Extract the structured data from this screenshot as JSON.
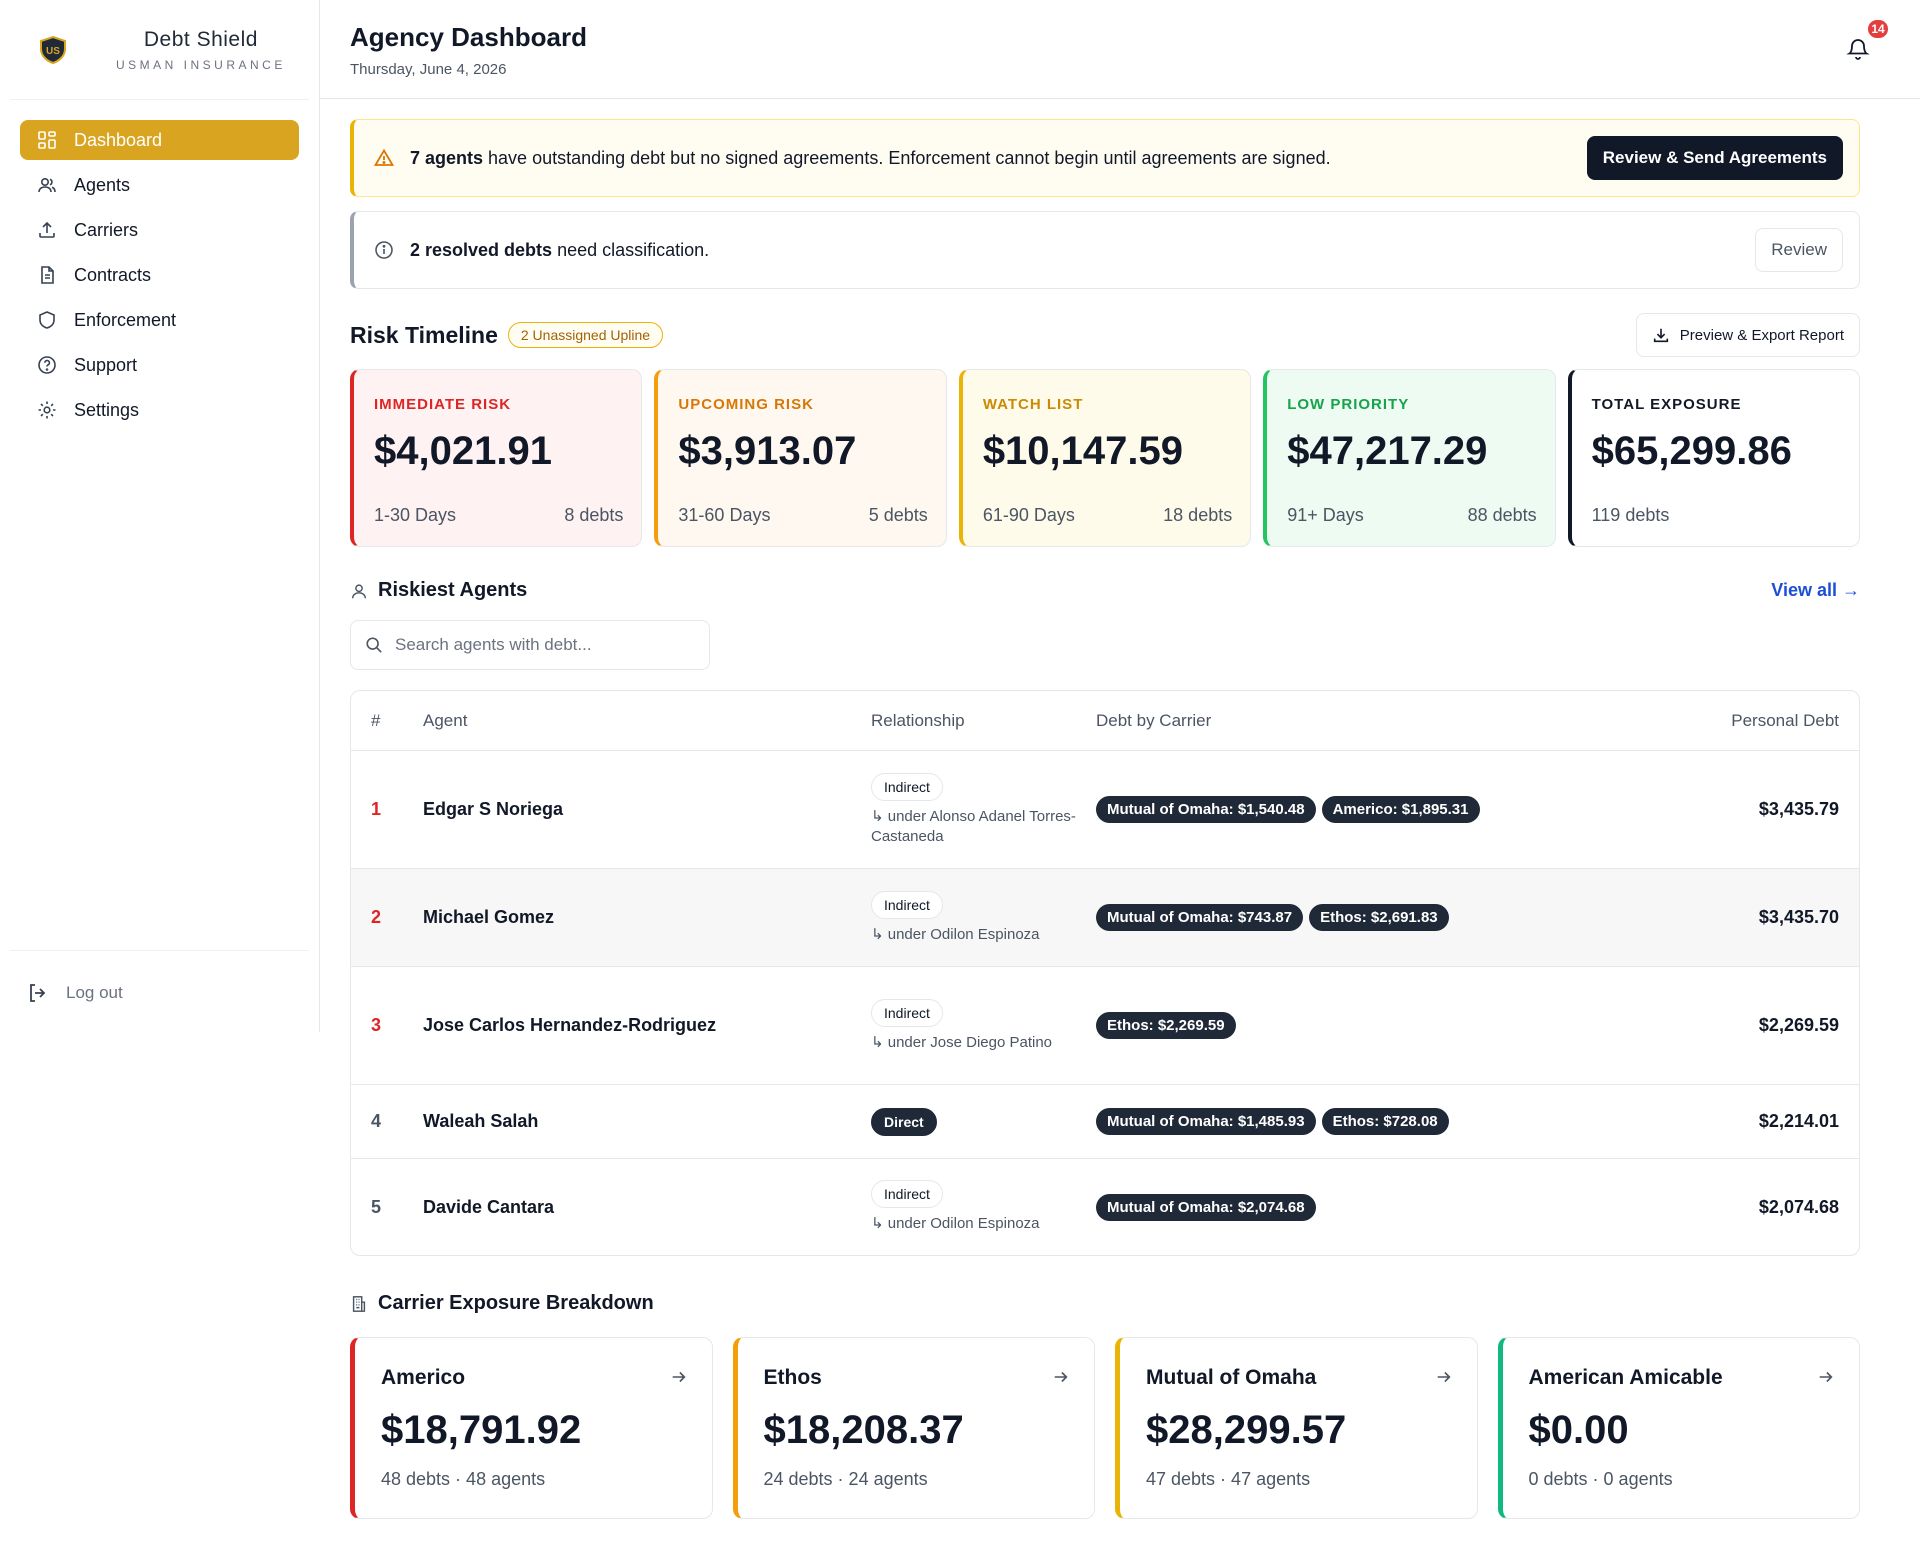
{
  "brand": {
    "name": "Debt Shield",
    "sub": "USMAN INSURANCE"
  },
  "nav": [
    {
      "label": "Dashboard",
      "icon": "grid-icon",
      "active": true
    },
    {
      "label": "Agents",
      "icon": "users-icon"
    },
    {
      "label": "Carriers",
      "icon": "upload-icon"
    },
    {
      "label": "Contracts",
      "icon": "document-icon"
    },
    {
      "label": "Enforcement",
      "icon": "shield-icon"
    },
    {
      "label": "Support",
      "icon": "help-icon"
    },
    {
      "label": "Settings",
      "icon": "gear-icon"
    }
  ],
  "logout": "Log out",
  "header": {
    "title": "Agency Dashboard",
    "date": "Thursday, June 4, 2026",
    "notifications": "14"
  },
  "alerts": {
    "warn": {
      "count": "7 agents",
      "text": " have outstanding debt but no signed agreements. Enforcement cannot begin until agreements are signed.",
      "button": "Review & Send Agreements"
    },
    "info": {
      "count": "2 resolved debts",
      "text": " need classification.",
      "button": "Review"
    }
  },
  "risk": {
    "title": "Risk Timeline",
    "badge": "2 Unassigned Upline",
    "export": "Preview & Export Report",
    "cards": [
      {
        "label": "IMMEDIATE RISK",
        "value": "$4,021.91",
        "range": "1-30 Days",
        "debts": "8 debts",
        "color": "#dc2626",
        "bg": "#fef2f2"
      },
      {
        "label": "UPCOMING RISK",
        "value": "$3,913.07",
        "range": "31-60 Days",
        "debts": "5 debts",
        "color": "#d97706",
        "bg": "#fff8f1"
      },
      {
        "label": "WATCH LIST",
        "value": "$10,147.59",
        "range": "61-90 Days",
        "debts": "18 debts",
        "color": "#ca8a04",
        "bg": "#fffbeb"
      },
      {
        "label": "LOW PRIORITY",
        "value": "$47,217.29",
        "range": "91+ Days",
        "debts": "88 debts",
        "color": "#16a34a",
        "bg": "#edfbf2"
      },
      {
        "label": "TOTAL EXPOSURE",
        "value": "$65,299.86",
        "range": "119 debts",
        "debts": "",
        "color": "#111827",
        "bg": "#ffffff"
      }
    ]
  },
  "riskiest": {
    "title": "Riskiest Agents",
    "view_all": "View all →",
    "search_placeholder": "Search agents with debt...",
    "columns": {
      "num": "#",
      "agent": "Agent",
      "relationship": "Relationship",
      "debt": "Debt by Carrier",
      "personal": "Personal Debt"
    },
    "rows": [
      {
        "num": "1",
        "name": "Edgar S Noriega",
        "rel": "Indirect",
        "under": "↳ under Alonso Adanel Torres-Castaneda",
        "chips": [
          "Mutual of Omaha: $1,540.48",
          "Americo: $1,895.31"
        ],
        "debt": "$3,435.79"
      },
      {
        "num": "2",
        "name": "Michael Gomez",
        "rel": "Indirect",
        "under": "↳ under Odilon Espinoza",
        "chips": [
          "Mutual of Omaha: $743.87",
          "Ethos: $2,691.83"
        ],
        "debt": "$3,435.70"
      },
      {
        "num": "3",
        "name": "Jose Carlos Hernandez-Rodriguez",
        "rel": "Indirect",
        "under": "↳ under Jose Diego Patino",
        "chips": [
          "Ethos: $2,269.59"
        ],
        "debt": "$2,269.59"
      },
      {
        "num": "4",
        "name": "Waleah Salah",
        "rel": "Direct",
        "under": "",
        "chips": [
          "Mutual of Omaha: $1,485.93",
          "Ethos: $728.08"
        ],
        "debt": "$2,214.01"
      },
      {
        "num": "5",
        "name": "Davide Cantara",
        "rel": "Indirect",
        "under": "↳ under Odilon Espinoza",
        "chips": [
          "Mutual of Omaha: $2,074.68"
        ],
        "debt": "$2,074.68"
      }
    ]
  },
  "carriers": {
    "title": "Carrier Exposure Breakdown",
    "cards": [
      {
        "name": "Americo",
        "value": "$18,791.92",
        "foot": "48 debts · 48 agents",
        "color": "#dc2626"
      },
      {
        "name": "Ethos",
        "value": "$18,208.37",
        "foot": "24 debts · 24 agents",
        "color": "#f59e0b"
      },
      {
        "name": "Mutual of Omaha",
        "value": "$28,299.57",
        "foot": "47 debts · 47 agents",
        "color": "#eab308"
      },
      {
        "name": "American Amicable",
        "value": "$0.00",
        "foot": "0 debts · 0 agents",
        "color": "#10b981"
      }
    ]
  }
}
